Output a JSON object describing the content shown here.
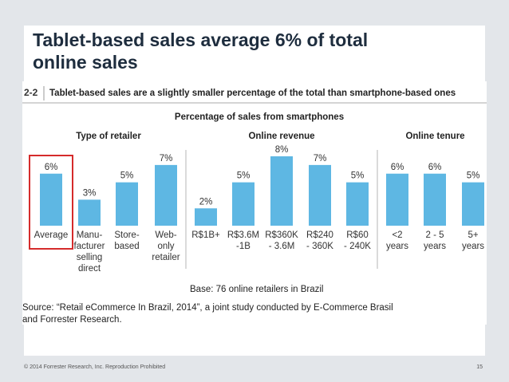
{
  "slide": {
    "title_line1": "Tablet-based sales average 6% of total",
    "title_line2": "online sales",
    "footer": "© 2014 Forrester Research, Inc. Reproduction Prohibited",
    "page_number": "15"
  },
  "figure": {
    "number": "2-2",
    "heading": "Tablet-based sales are a slightly smaller percentage of the total than smartphone-based ones",
    "base_note": "Base: 76 online retailers in Brazil",
    "source_line1": "Source: “Retail eCommerce In Brazil, 2014”, a joint study conducted by E-Commerce Brasil",
    "source_line2": "and Forrester Research."
  },
  "chart_data": {
    "type": "bar",
    "title": "Percentage of sales from smartphones",
    "groups": [
      "Type of retailer",
      "Online revenue",
      "Online tenure"
    ],
    "categories": [
      {
        "group": 0,
        "lines": [
          "Average"
        ]
      },
      {
        "group": 0,
        "lines": [
          "Manu-",
          "facturer",
          "selling",
          "direct"
        ]
      },
      {
        "group": 0,
        "lines": [
          "Store-",
          "based"
        ]
      },
      {
        "group": 0,
        "lines": [
          "Web-",
          "only",
          "retailer"
        ]
      },
      {
        "group": 1,
        "lines": [
          "R$1B+"
        ]
      },
      {
        "group": 1,
        "lines": [
          "R$3.6M",
          "-1B"
        ]
      },
      {
        "group": 1,
        "lines": [
          "R$360K",
          "- 3.6M"
        ]
      },
      {
        "group": 1,
        "lines": [
          "R$240",
          "- 360K"
        ]
      },
      {
        "group": 1,
        "lines": [
          "R$60",
          "- 240K"
        ]
      },
      {
        "group": 2,
        "lines": [
          "<2",
          "years"
        ]
      },
      {
        "group": 2,
        "lines": [
          "2 - 5",
          "years"
        ]
      },
      {
        "group": 2,
        "lines": [
          "5+",
          "years"
        ]
      }
    ],
    "values": [
      6,
      3,
      5,
      7,
      2,
      5,
      8,
      7,
      5,
      6,
      6,
      5
    ],
    "value_labels": [
      "6%",
      "3%",
      "5%",
      "7%",
      "2%",
      "5%",
      "8%",
      "7%",
      "5%",
      "6%",
      "6%",
      "5%"
    ],
    "ylim": [
      0,
      8
    ],
    "highlighted_category": "Average",
    "colors": {
      "bar": "#5eb7e3",
      "highlight": "#d52b2b",
      "divider": "#b5b5b5",
      "text": "#333333",
      "heading": "#222222"
    }
  }
}
